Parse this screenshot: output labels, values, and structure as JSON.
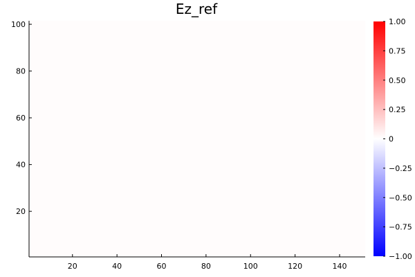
{
  "chart_data": {
    "type": "heatmap",
    "title": "Ez_ref",
    "xlabel": "",
    "ylabel": "",
    "xlim": [
      0.5,
      151.5
    ],
    "ylim": [
      0.5,
      101.5
    ],
    "x_ticks": [
      20,
      40,
      60,
      80,
      100,
      120,
      140
    ],
    "y_ticks": [
      20,
      40,
      60,
      80,
      100
    ],
    "grid": false,
    "field_value": 0.01,
    "colorbar": {
      "min": -1.0,
      "max": 1.0,
      "ticks": [
        -1.0,
        -0.75,
        -0.5,
        -0.25,
        0,
        0.25,
        0.5,
        0.75,
        1.0
      ],
      "tick_labels": [
        "−1.00",
        "−0.75",
        "−0.50",
        "−0.25",
        "0",
        "0.25",
        "0.50",
        "0.75",
        "1.00"
      ],
      "colors": [
        "#0000ff",
        "#ffffff",
        "#ff0000"
      ]
    }
  }
}
